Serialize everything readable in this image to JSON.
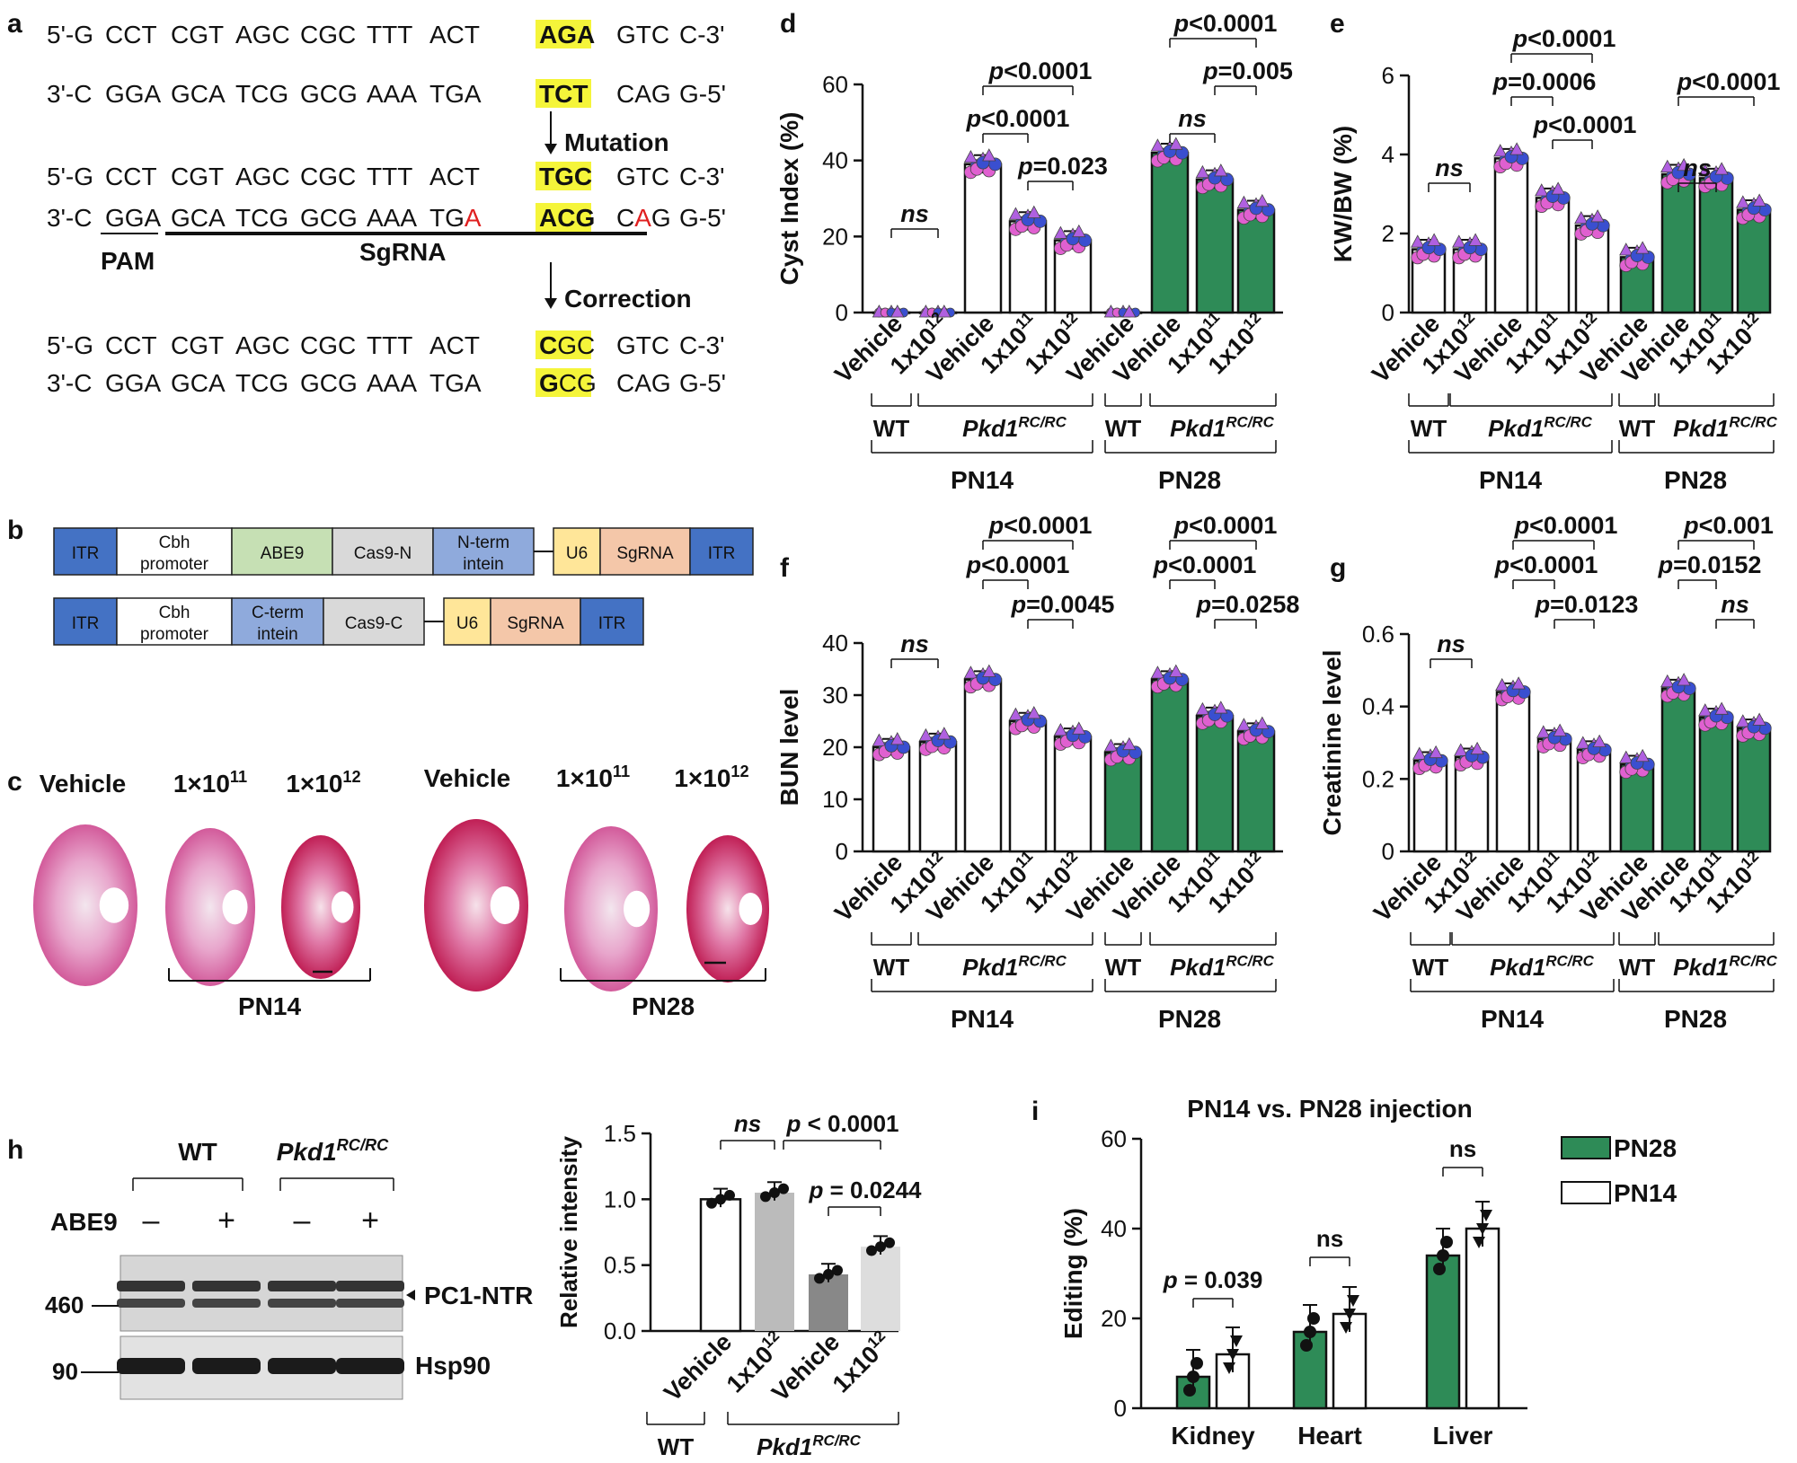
{
  "panel_labels": {
    "a": "a",
    "b": "b",
    "c": "c",
    "d": "d",
    "e": "e",
    "f": "f",
    "g": "g",
    "h": "h",
    "i": "i"
  },
  "panel_a": {
    "block1": {
      "top": {
        "prefix": "5'-G",
        "codons": [
          "CCT",
          "CGT",
          "AGC",
          "CGC",
          "TTT",
          "ACT"
        ],
        "target": "AGA",
        "after": "GTC",
        "end": "C-3'"
      },
      "bottom": {
        "prefix": "3'-C",
        "codons": [
          "GGA",
          "GCA",
          "TCG",
          "GCG",
          "AAA",
          "TGA"
        ],
        "target": "TCT",
        "after": "CAG",
        "end": "G-5'"
      }
    },
    "mutation_label": "Mutation",
    "block2": {
      "top": {
        "prefix": "5'-G",
        "codons": [
          "CCT",
          "CGT",
          "AGC",
          "CGC",
          "TTT",
          "ACT"
        ],
        "target": "TGC",
        "after": "GTC",
        "end": "C-3'"
      },
      "bottom": {
        "prefix": "3'-C",
        "codons": [
          "GGA",
          "GCA",
          "TCG",
          "GCG",
          "AAA"
        ],
        "tga_base": "TG",
        "tga_red": "A",
        "target": "ACG",
        "after_base": "C",
        "after_red": "A",
        "after_tail": "G",
        "end": "G-5'"
      }
    },
    "pam_label": "PAM",
    "sgrna_label": "SgRNA",
    "correction_label": "Correction",
    "block3": {
      "top": {
        "prefix": "5'-G",
        "codons": [
          "CCT",
          "CGT",
          "AGC",
          "CGC",
          "TTT",
          "ACT"
        ],
        "target_bold": "C",
        "target_rest": "GC",
        "after": "GTC",
        "end": "C-3'"
      },
      "bottom": {
        "prefix": "3'-C",
        "codons": [
          "GGA",
          "GCA",
          "TCG",
          "GCG",
          "AAA",
          "TGA"
        ],
        "target_bold": "G",
        "target_rest": "CG",
        "after": "CAG",
        "end": "G-5'"
      }
    }
  },
  "panel_b": {
    "construct1": [
      {
        "label": "ITR",
        "color": "#4472c4"
      },
      {
        "label": "Cbh\npromoter",
        "color": "#ffffff"
      },
      {
        "label": "ABE9",
        "color": "#c6e0b4"
      },
      {
        "label": "Cas9-N",
        "color": "#d9d9d9"
      },
      {
        "label": "N-term\nintein",
        "color": "#8faadc"
      },
      {
        "label": "U6",
        "color": "#ffe699"
      },
      {
        "label": "SgRNA",
        "color": "#f4c7a9"
      },
      {
        "label": "ITR",
        "color": "#4472c4"
      }
    ],
    "construct2": [
      {
        "label": "ITR",
        "color": "#4472c4"
      },
      {
        "label": "Cbh\npromoter",
        "color": "#ffffff"
      },
      {
        "label": "C-term\nintein",
        "color": "#8faadc"
      },
      {
        "label": "Cas9-C",
        "color": "#d9d9d9"
      },
      {
        "label": "U6",
        "color": "#ffe699"
      },
      {
        "label": "SgRNA",
        "color": "#f4c7a9"
      },
      {
        "label": "ITR",
        "color": "#4472c4"
      }
    ]
  },
  "panel_c": {
    "pn14_labels": [
      "Vehicle",
      "1×10",
      "1×10"
    ],
    "pn14_exps": [
      "",
      "11",
      "12"
    ],
    "pn28_labels": [
      "Vehicle",
      "1×10",
      "1×10"
    ],
    "pn28_exps": [
      "",
      "11",
      "12"
    ],
    "group_pn14": "PN14",
    "group_pn28": "PN28"
  },
  "bar_panels": {
    "x_labels": [
      "Vehicle",
      "1x10",
      "Vehicle",
      "1x10",
      "1x10",
      "Vehicle",
      "Vehicle",
      "1x10",
      "1x10"
    ],
    "x_exps": [
      "",
      "12",
      "",
      "11",
      "12",
      "",
      "",
      "11",
      "12"
    ],
    "wt": "WT",
    "mut": "Pkd1",
    "mut_sup": "RC/RC",
    "pn14": "PN14",
    "pn28": "PN28",
    "fill_colors": [
      "#ffffff",
      "#ffffff",
      "#ffffff",
      "#ffffff",
      "#ffffff",
      "#2e8b57",
      "#2e8b57",
      "#2e8b57",
      "#2e8b57"
    ],
    "dot_colors": [
      "#e060d0",
      "#3a4fd0",
      "#b060e0"
    ]
  },
  "chart_data": [
    {
      "id": "d",
      "type": "bar",
      "ylabel": "Cyst Index (%)",
      "ylim": [
        0,
        60
      ],
      "yticks": [
        "0",
        "20",
        "40",
        "60"
      ],
      "categories": [
        "WT PN14 Vehicle",
        "Pkd1 PN14 1x10^12",
        "Pkd1 PN14 Vehicle",
        "Pkd1 PN14 1x10^11",
        "Pkd1 PN14 1x10^12",
        "WT PN28 Vehicle",
        "Pkd1 PN28 Vehicle",
        "Pkd1 PN28 1x10^11",
        "Pkd1 PN28 1x10^12"
      ],
      "values": [
        0,
        0,
        39,
        24,
        19,
        0,
        42,
        35,
        27
      ],
      "annotations": [
        {
          "from": 0,
          "to": 1,
          "text": "ns",
          "level": 1
        },
        {
          "from": 2,
          "to": 3,
          "text": "p<0.0001",
          "level": 3
        },
        {
          "from": 2,
          "to": 4,
          "text": "p<0.0001",
          "level": 4
        },
        {
          "from": 3,
          "to": 4,
          "text": "p=0.023",
          "level": 2
        },
        {
          "from": 6,
          "to": 7,
          "text": "ns",
          "level": 3
        },
        {
          "from": 6,
          "to": 8,
          "text": "p<0.0001",
          "level": 5
        },
        {
          "from": 7,
          "to": 8,
          "text": "p=0.005",
          "level": 4
        }
      ]
    },
    {
      "id": "e",
      "type": "bar",
      "ylabel": "KW/BW (%)",
      "ylim": [
        0,
        6
      ],
      "yticks": [
        "0",
        "2",
        "4",
        "6"
      ],
      "categories": [
        "WT PN14 Vehicle",
        "Pkd1 PN14 1x10^12",
        "Pkd1 PN14 Vehicle",
        "Pkd1 PN14 1x10^11",
        "Pkd1 PN14 1x10^12",
        "WT PN28 Vehicle",
        "Pkd1 PN28 Vehicle",
        "Pkd1 PN28 1x10^11",
        "Pkd1 PN28 1x10^12"
      ],
      "values": [
        1.6,
        1.6,
        3.9,
        2.9,
        2.2,
        1.4,
        3.5,
        3.4,
        2.6
      ],
      "annotations": [
        {
          "from": 0,
          "to": 1,
          "text": "ns",
          "level": 1
        },
        {
          "from": 2,
          "to": 3,
          "text": "p=0.0006",
          "level": 3
        },
        {
          "from": 2,
          "to": 4,
          "text": "p<0.0001",
          "level": 4
        },
        {
          "from": 3,
          "to": 4,
          "text": "p<0.0001",
          "level": 2
        },
        {
          "from": 6,
          "to": 7,
          "text": "ns",
          "level": 1
        },
        {
          "from": 6,
          "to": 8,
          "text": "p<0.0001",
          "level": 3
        }
      ]
    },
    {
      "id": "f",
      "type": "bar",
      "ylabel": "BUN level",
      "ylim": [
        0,
        40
      ],
      "yticks": [
        "0",
        "10",
        "20",
        "30",
        "40"
      ],
      "categories": [
        "WT PN14 Vehicle",
        "Pkd1 PN14 1x10^12",
        "Pkd1 PN14 Vehicle",
        "Pkd1 PN14 1x10^11",
        "Pkd1 PN14 1x10^12",
        "WT PN28 Vehicle",
        "Pkd1 PN28 Vehicle",
        "Pkd1 PN28 1x10^11",
        "Pkd1 PN28 1x10^12"
      ],
      "values": [
        20,
        21,
        33,
        25,
        22,
        19,
        33,
        26,
        23
      ],
      "annotations": [
        {
          "from": 0,
          "to": 1,
          "text": "ns",
          "level": 1
        },
        {
          "from": 2,
          "to": 3,
          "text": "p<0.0001",
          "level": 3
        },
        {
          "from": 2,
          "to": 4,
          "text": "p<0.0001",
          "level": 4
        },
        {
          "from": 3,
          "to": 4,
          "text": "p=0.0045",
          "level": 2
        },
        {
          "from": 6,
          "to": 7,
          "text": "p<0.0001",
          "level": 3
        },
        {
          "from": 6,
          "to": 8,
          "text": "p<0.0001",
          "level": 4
        },
        {
          "from": 7,
          "to": 8,
          "text": "p=0.0258",
          "level": 2
        }
      ]
    },
    {
      "id": "g",
      "type": "bar",
      "ylabel": "Creatinine  level",
      "ylim": [
        0,
        0.6
      ],
      "yticks": [
        "0",
        "0.2",
        "0.4",
        "0.6"
      ],
      "categories": [
        "WT PN14 Vehicle",
        "Pkd1 PN14 1x10^12",
        "Pkd1 PN14 Vehicle",
        "Pkd1 PN14 1x10^11",
        "Pkd1 PN14 1x10^12",
        "WT PN28 Vehicle",
        "Pkd1 PN28 Vehicle",
        "Pkd1 PN28 1x10^11",
        "Pkd1 PN28 1x10^12"
      ],
      "values": [
        0.25,
        0.26,
        0.44,
        0.31,
        0.28,
        0.24,
        0.45,
        0.37,
        0.34
      ],
      "annotations": [
        {
          "from": 0,
          "to": 1,
          "text": "ns",
          "level": 1
        },
        {
          "from": 2,
          "to": 3,
          "text": "p<0.0001",
          "level": 3
        },
        {
          "from": 2,
          "to": 4,
          "text": "p<0.0001",
          "level": 4
        },
        {
          "from": 3,
          "to": 4,
          "text": "p=0.0123",
          "level": 2
        },
        {
          "from": 6,
          "to": 7,
          "text": "p=0.0152",
          "level": 3
        },
        {
          "from": 6,
          "to": 8,
          "text": "p<0.001",
          "level": 4
        },
        {
          "from": 7,
          "to": 8,
          "text": "ns",
          "level": 2
        }
      ]
    },
    {
      "id": "h",
      "type": "bar",
      "ylabel": "Relative intensity",
      "ylim": [
        0,
        1.5
      ],
      "yticks": [
        "0.0",
        "0.5",
        "1.0",
        "1.5"
      ],
      "categories": [
        "Vehicle",
        "1x10",
        "Vehicle",
        "1x10"
      ],
      "exps": [
        "",
        "12",
        "",
        "12"
      ],
      "values": [
        1.0,
        1.05,
        0.43,
        0.64
      ],
      "colors": [
        "#ffffff",
        "#bbbbbb",
        "#888888",
        "#dddddd"
      ],
      "annotations": [
        {
          "from": 0,
          "to": 1,
          "text": "ns",
          "level": 1
        },
        {
          "from": 1,
          "to": 3,
          "text": "p < 0.0001",
          "level": 1
        },
        {
          "from": 2,
          "to": 3,
          "text": "p = 0.0244",
          "level": 0
        }
      ],
      "wt": "WT",
      "mut": "Pkd1",
      "mut_sup": "RC/RC"
    },
    {
      "id": "i",
      "type": "bar",
      "title": "PN14 vs. PN28 injection",
      "ylabel": "Editing (%)",
      "ylim": [
        0,
        60
      ],
      "yticks": [
        "0",
        "20",
        "40",
        "60"
      ],
      "categories": [
        "Kidney",
        "Heart",
        "Liver"
      ],
      "series": [
        {
          "name": "PN28",
          "values": [
            7,
            17,
            34
          ],
          "color": "#2e8b57"
        },
        {
          "name": "PN14",
          "values": [
            12,
            21,
            40
          ],
          "color": "#ffffff"
        }
      ],
      "annotations": [
        {
          "text": "p = 0.039"
        },
        {
          "text": "ns"
        },
        {
          "text": "ns"
        }
      ]
    }
  ],
  "blot": {
    "wt": "WT",
    "mut": "Pkd1",
    "mut_sup": "RC/RC",
    "abe9": "ABE9",
    "lane_signs": [
      "–",
      "+",
      "–",
      "+"
    ],
    "marker_460": "460",
    "marker_90": "90",
    "band_top": "PC1-NTR",
    "band_bottom": "Hsp90"
  }
}
